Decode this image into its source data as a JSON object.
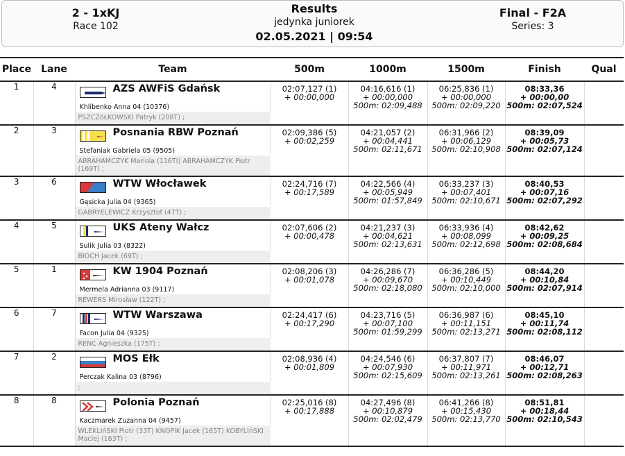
{
  "header": {
    "event": "2 - 1xKJ",
    "race": "Race 102",
    "title": "Results",
    "subtitle": "jedynka juniorek",
    "datetime": "02.05.2021 | 09:54",
    "phase": "Final - F2A",
    "series": "Series: 3"
  },
  "columns": {
    "place": "Place",
    "lane": "Lane",
    "team": "Team",
    "t500": "500m",
    "t1000": "1000m",
    "t1500": "1500m",
    "finish": "Finish",
    "qual": "Qual"
  },
  "colors": {
    "navy": "#1c2a6b",
    "yellow": "#f4e04d",
    "red": "#d63a3a",
    "sky": "#3a80c8"
  },
  "rows": [
    {
      "place": "1",
      "lane": "4",
      "team": "AZS AWFiS Gdańsk",
      "rower": "Khlibenko Anna 04 (10376)",
      "coach": "PSZCZóŁKOWSKI Patryk (208T) ;",
      "t500": {
        "time": "02:07,127 (1)",
        "diff": "+ 00:00,000"
      },
      "t1000": {
        "time": "04:16,616 (1)",
        "diff": "+ 00:00,000",
        "split": "500m: 02:09,488"
      },
      "t1500": {
        "time": "06:25,836 (1)",
        "diff": "+ 00:00,000",
        "split": "500m: 02:09,220"
      },
      "finish": {
        "time": "08:33,36",
        "diff": "+ 00:00,00",
        "split": "500m: 02:07,524"
      },
      "qual": ""
    },
    {
      "place": "2",
      "lane": "3",
      "team": "Posnania RBW Poznań",
      "rower": "Stefaniak Gabriela 05 (9505)",
      "coach": "ABRAHAMCZYK Mariola (116TI) ABRAHAMCZYK Piotr (169T) ;",
      "t500": {
        "time": "02:09,386 (5)",
        "diff": "+ 00:02,259"
      },
      "t1000": {
        "time": "04:21,057 (2)",
        "diff": "+ 00:04,441",
        "split": "500m: 02:11,671"
      },
      "t1500": {
        "time": "06:31,966 (2)",
        "diff": "+ 00:06,129",
        "split": "500m: 02:10,908"
      },
      "finish": {
        "time": "08:39,09",
        "diff": "+ 00:05,73",
        "split": "500m: 02:07,124"
      },
      "qual": ""
    },
    {
      "place": "3",
      "lane": "6",
      "team": "WTW Włocławek",
      "rower": "Gęsicka Julia 04 (9365)",
      "coach": "GABRYELEWICZ Krzysztof (47T) ;",
      "t500": {
        "time": "02:24,716 (7)",
        "diff": "+ 00:17,589"
      },
      "t1000": {
        "time": "04:22,566 (4)",
        "diff": "+ 00:05,949",
        "split": "500m: 01:57,849"
      },
      "t1500": {
        "time": "06:33,237 (3)",
        "diff": "+ 00:07,401",
        "split": "500m: 02:10,671"
      },
      "finish": {
        "time": "08:40,53",
        "diff": "+ 00:07,16",
        "split": "500m: 02:07,292"
      },
      "qual": ""
    },
    {
      "place": "4",
      "lane": "5",
      "team": "UKS Ateny Wałcz",
      "rower": "Sulik Julia 03 (8322)",
      "coach": "BłOCH Jacek (69T) ;",
      "t500": {
        "time": "02:07,606 (2)",
        "diff": "+ 00:00,478"
      },
      "t1000": {
        "time": "04:21,237 (3)",
        "diff": "+ 00:04,621",
        "split": "500m: 02:13,631"
      },
      "t1500": {
        "time": "06:33,936 (4)",
        "diff": "+ 00:08,099",
        "split": "500m: 02:12,698"
      },
      "finish": {
        "time": "08:42,62",
        "diff": "+ 00:09,25",
        "split": "500m: 02:08,684"
      },
      "qual": ""
    },
    {
      "place": "5",
      "lane": "1",
      "team": "KW 1904 Poznań",
      "rower": "Mermela Adrianna 03 (9117)",
      "coach": "REWERS Mirosław (122T) ;",
      "t500": {
        "time": "02:08,206 (3)",
        "diff": "+ 00:01,078"
      },
      "t1000": {
        "time": "04:26,286 (7)",
        "diff": "+ 00:09,670",
        "split": "500m: 02:18,080"
      },
      "t1500": {
        "time": "06:36,286 (5)",
        "diff": "+ 00:10,449",
        "split": "500m: 02:10,000"
      },
      "finish": {
        "time": "08:44,20",
        "diff": "+ 00:10,84",
        "split": "500m: 02:07,914"
      },
      "qual": ""
    },
    {
      "place": "6",
      "lane": "7",
      "team": "WTW Warszawa",
      "rower": "Facon Julia 04 (9325)",
      "coach": "RENC Agnieszka (175T) ;",
      "t500": {
        "time": "02:24,417 (6)",
        "diff": "+ 00:17,290"
      },
      "t1000": {
        "time": "04:23,716 (5)",
        "diff": "+ 00:07,100",
        "split": "500m: 01:59,299"
      },
      "t1500": {
        "time": "06:36,987 (6)",
        "diff": "+ 00:11,151",
        "split": "500m: 02:13,271"
      },
      "finish": {
        "time": "08:45,10",
        "diff": "+ 00:11,74",
        "split": "500m: 02:08,112"
      },
      "qual": ""
    },
    {
      "place": "7",
      "lane": "2",
      "team": "MOS Ełk",
      "rower": "Perczak Kalina 03 (8796)",
      "coach": ";",
      "t500": {
        "time": "02:08,936 (4)",
        "diff": "+ 00:01,809"
      },
      "t1000": {
        "time": "04:24,546 (6)",
        "diff": "+ 00:07,930",
        "split": "500m: 02:15,609"
      },
      "t1500": {
        "time": "06:37,807 (7)",
        "diff": "+ 00:11,971",
        "split": "500m: 02:13,261"
      },
      "finish": {
        "time": "08:46,07",
        "diff": "+ 00:12,71",
        "split": "500m: 02:08,263"
      },
      "qual": ""
    },
    {
      "place": "8",
      "lane": "8",
      "team": "Polonia Poznań",
      "rower": "Kaczmarek Zuzanna 04 (9457)",
      "coach": "WLEKLIńSKI Piotr (33T) KNOPIK Jacek (165T) KOBYLIńSKI Maciej (163T) ;",
      "t500": {
        "time": "02:25,016 (8)",
        "diff": "+ 00:17,888"
      },
      "t1000": {
        "time": "04:27,496 (8)",
        "diff": "+ 00:10,879",
        "split": "500m: 02:02,479"
      },
      "t1500": {
        "time": "06:41,266 (8)",
        "diff": "+ 00:15,430",
        "split": "500m: 02:13,770"
      },
      "finish": {
        "time": "08:51,81",
        "diff": "+ 00:18,44",
        "split": "500m: 02:10,543"
      },
      "qual": ""
    }
  ]
}
